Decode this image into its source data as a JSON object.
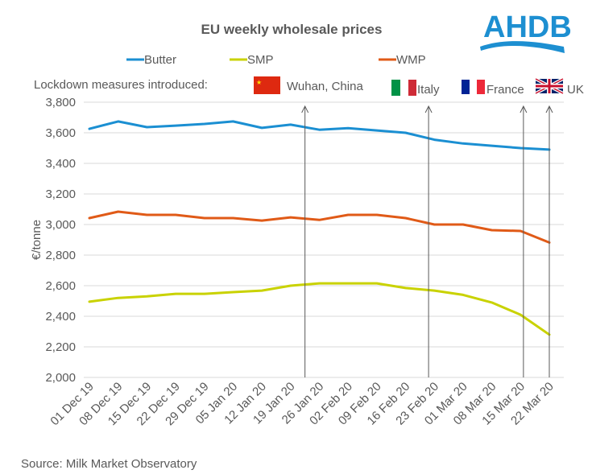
{
  "logo": {
    "text": "AHDB",
    "color": "#1d8fd1"
  },
  "source": "Source: Milk Market Observatory",
  "annotation_label": "Lockdown measures introduced:",
  "chart_data": {
    "type": "line",
    "title": "EU weekly wholesale prices",
    "xlabel": "",
    "ylabel": "€/tonne",
    "ylim": [
      2000,
      3800
    ],
    "yticks": [
      2000,
      2200,
      2400,
      2600,
      2800,
      3000,
      3200,
      3400,
      3600,
      3800
    ],
    "ytick_labels": [
      "2,000",
      "2,200",
      "2,400",
      "2,600",
      "2,800",
      "3,000",
      "3,200",
      "3,400",
      "3,600",
      "3,800"
    ],
    "grid": true,
    "legend_position": "top",
    "categories": [
      "01 Dec 19",
      "08 Dec 19",
      "15 Dec 19",
      "22 Dec 19",
      "29 Dec 19",
      "05 Jan 20",
      "12 Jan 20",
      "19 Jan 20",
      "26 Jan 20",
      "02 Feb 20",
      "09 Feb 20",
      "16 Feb 20",
      "23 Feb 20",
      "01 Mar 20",
      "08 Mar 20",
      "15 Mar 20",
      "22 Mar 20"
    ],
    "series": [
      {
        "name": "Butter",
        "color": "#1b8fd2",
        "values": [
          3626,
          3674,
          3637,
          3647,
          3658,
          3674,
          3632,
          3653,
          3620,
          3630,
          3615,
          3600,
          3555,
          3530,
          3515,
          3500,
          3490
        ]
      },
      {
        "name": "SMP",
        "color": "#c9d200",
        "values": [
          2495,
          2520,
          2530,
          2547,
          2547,
          2558,
          2568,
          2600,
          2615,
          2615,
          2615,
          2585,
          2568,
          2540,
          2490,
          2410,
          2280
        ]
      },
      {
        "name": "WMP",
        "color": "#e05a17",
        "values": [
          3042,
          3084,
          3063,
          3063,
          3042,
          3042,
          3026,
          3047,
          3030,
          3063,
          3063,
          3042,
          3000,
          3000,
          2963,
          2958,
          2882
        ]
      }
    ],
    "annotations": [
      {
        "label": "Wuhan, China",
        "flag": "china-flag",
        "x_index": 7.5
      },
      {
        "label": "Italy",
        "flag": "italy-flag",
        "x_index": 11.8
      },
      {
        "label": "France",
        "flag": "france-flag",
        "x_index": 15.1
      },
      {
        "label": "UK",
        "flag": "uk-flag",
        "x_index": 16.0
      }
    ]
  }
}
